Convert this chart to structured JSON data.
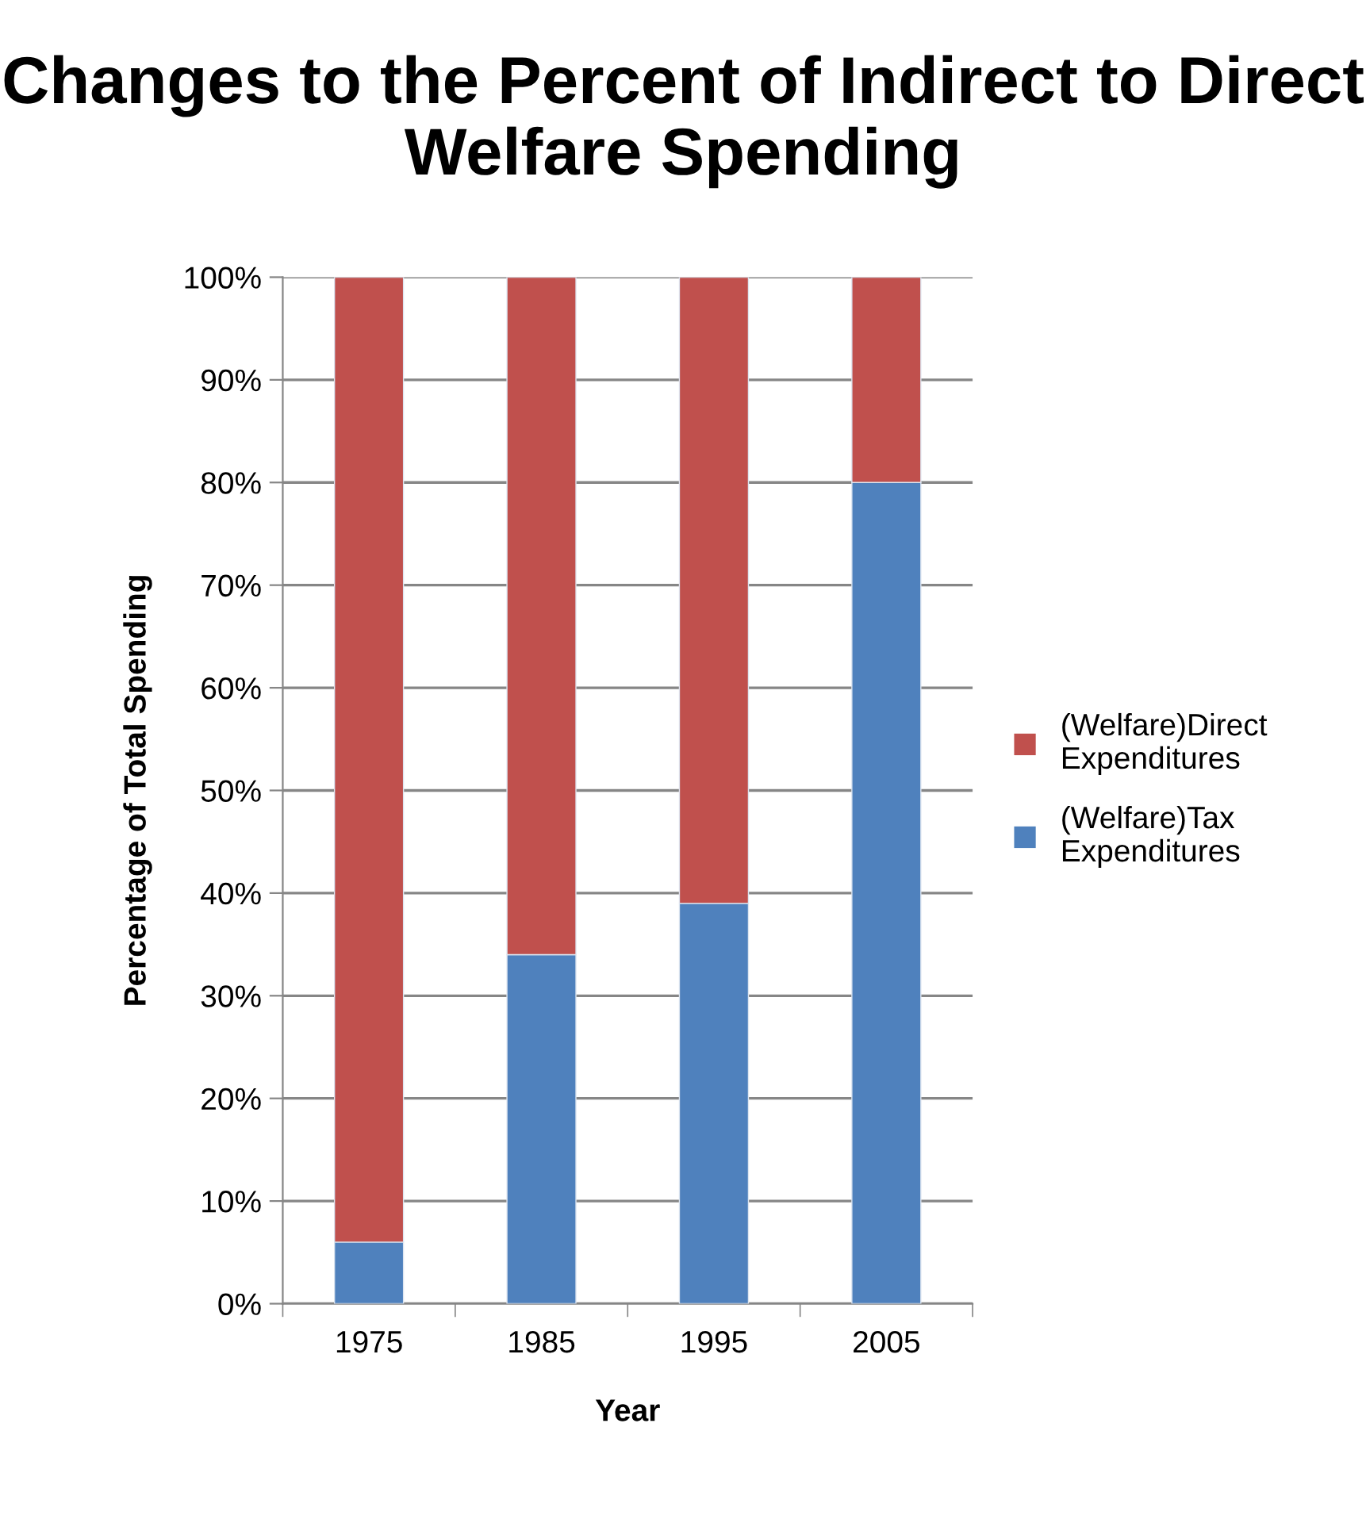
{
  "chart_data": {
    "type": "bar",
    "stacked": true,
    "title": "Changes to the Percent of Indirect to Direct Welfare Spending",
    "xlabel": "Year",
    "ylabel": "Percentage of Total Spending",
    "categories": [
      "1975",
      "1985",
      "1995",
      "2005"
    ],
    "series": [
      {
        "name": "(Welfare)Tax Expenditures",
        "color": "#4f81bd",
        "values": [
          6,
          34,
          39,
          80
        ]
      },
      {
        "name": "(Welfare)Direct Expenditures",
        "color": "#c0504d",
        "values": [
          94,
          66,
          61,
          20
        ]
      }
    ],
    "ylim": [
      0,
      100
    ],
    "yticks": [
      {
        "value": 0,
        "label": "0%"
      },
      {
        "value": 10,
        "label": "10%"
      },
      {
        "value": 20,
        "label": "20%"
      },
      {
        "value": 30,
        "label": "30%"
      },
      {
        "value": 40,
        "label": "40%"
      },
      {
        "value": 50,
        "label": "50%"
      },
      {
        "value": 60,
        "label": "60%"
      },
      {
        "value": 70,
        "label": "70%"
      },
      {
        "value": 80,
        "label": "80%"
      },
      {
        "value": 90,
        "label": "90%"
      },
      {
        "value": 100,
        "label": "100%"
      }
    ],
    "grid": "y",
    "legend": "right"
  }
}
